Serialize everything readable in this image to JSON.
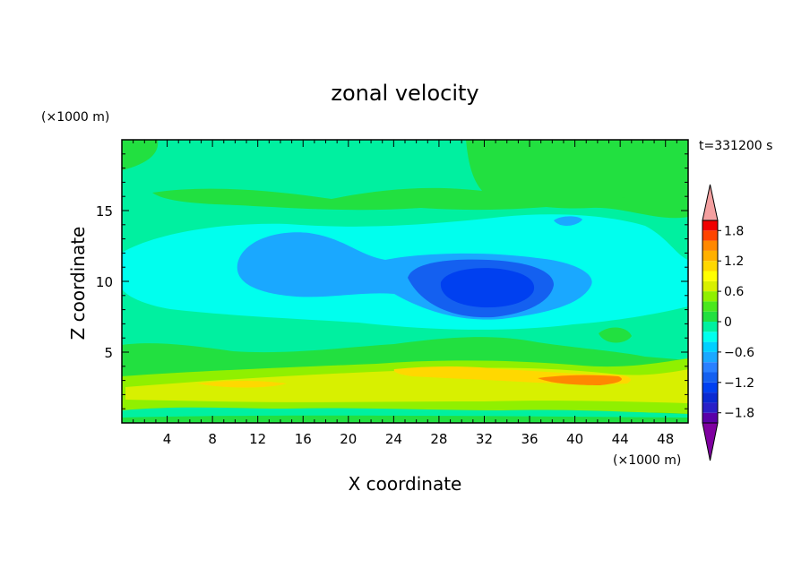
{
  "chart_data": {
    "type": "heatmap",
    "title": "zonal velocity",
    "xlabel": "X coordinate",
    "ylabel": "Z coordinate",
    "x_unit": "(×1000 m)",
    "y_unit": "(×1000 m)",
    "time_label": "t=331200 s",
    "xlim": [
      0,
      50
    ],
    "ylim": [
      0,
      20
    ],
    "x_ticks": [
      4,
      8,
      12,
      16,
      20,
      24,
      28,
      32,
      36,
      40,
      44,
      48
    ],
    "y_ticks": [
      5,
      10,
      15
    ],
    "colorbar": {
      "range": [
        -2.0,
        2.0
      ],
      "step": 0.2,
      "tick_labels": [
        "1.8",
        "1.2",
        "0.6",
        "0",
        "-0.6",
        "-1.2",
        "-1.8"
      ],
      "tick_values": [
        1.8,
        1.2,
        0.6,
        0,
        -0.6,
        -1.2,
        -1.8
      ],
      "extend": "both",
      "colors": [
        "#7f00a0",
        "#5a00a8",
        "#2a20c8",
        "#0a2ad2",
        "#0040f0",
        "#1460f0",
        "#2a80ff",
        "#1aa8ff",
        "#00d0ff",
        "#00ffee",
        "#00f0a0",
        "#22e040",
        "#4ae81e",
        "#90f000",
        "#d8f000",
        "#ffff00",
        "#ffd800",
        "#ffb000",
        "#ff8800",
        "#ff4400",
        "#f00000",
        "#f4a0a0"
      ]
    },
    "grid": false,
    "field_features": [
      {
        "name": "negative core",
        "x": 31,
        "z": 9.8,
        "value": -1.4
      },
      {
        "name": "negative lobe",
        "x": 14,
        "z": 11.5,
        "value": -0.8
      },
      {
        "name": "small negative",
        "x": 39,
        "z": 14.2,
        "value": -0.8
      },
      {
        "name": "positive jet",
        "x": 28,
        "z": 2.6,
        "value": 0.8
      },
      {
        "name": "positive max",
        "x": 43,
        "z": 3.1,
        "value": 1.4
      }
    ]
  }
}
